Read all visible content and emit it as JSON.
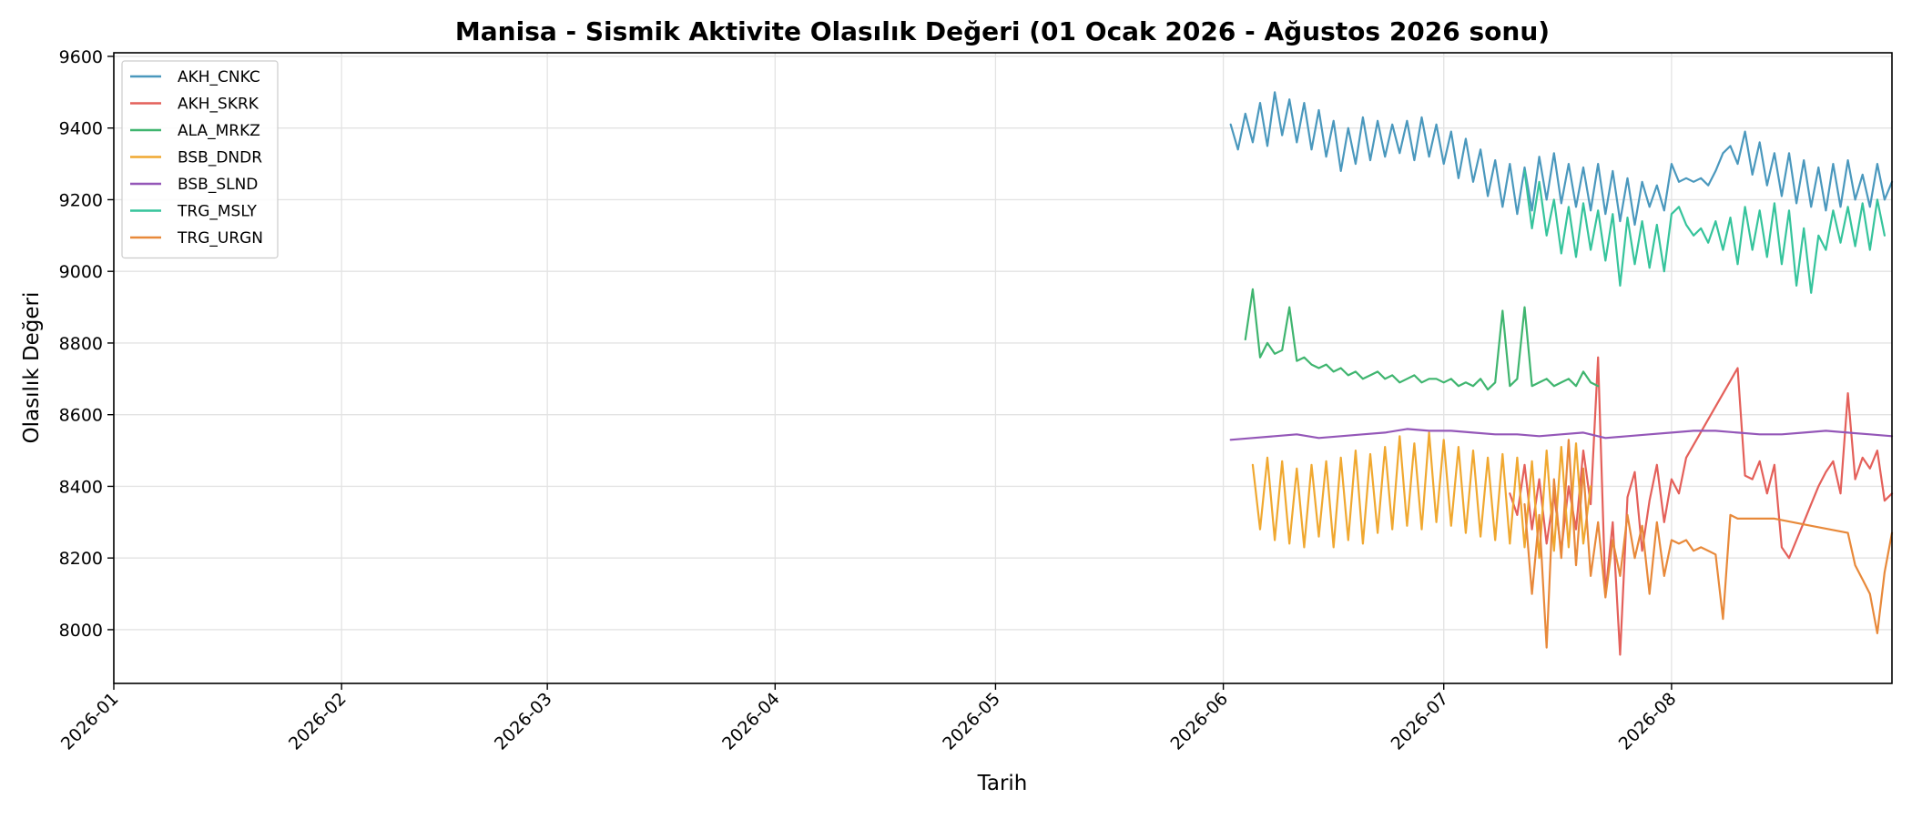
{
  "chart_data": {
    "type": "line",
    "title": "Manisa - Sismik Aktivite Olasılık Değeri (01 Ocak 2026 - Ağustos 2026 sonu)",
    "xlabel": "Tarih",
    "ylabel": "Olasılık Değeri",
    "xlim": [
      "2026-01-01",
      "2026-08-31"
    ],
    "ylim": [
      7850,
      9610
    ],
    "x_ticks": [
      "2026-01",
      "2026-02",
      "2026-03",
      "2026-04",
      "2026-05",
      "2026-06",
      "2026-07",
      "2026-08"
    ],
    "y_ticks": [
      8000,
      8200,
      8400,
      8600,
      8800,
      9000,
      9200,
      9400,
      9600
    ],
    "grid": true,
    "legend_position": "top-left",
    "series": [
      {
        "name": "AKH_CNKC",
        "color": "#4a98bd",
        "x": [
          "2026-06-02",
          "2026-06-03",
          "2026-06-04",
          "2026-06-05",
          "2026-06-06",
          "2026-06-07",
          "2026-06-08",
          "2026-06-09",
          "2026-06-10",
          "2026-06-11",
          "2026-06-12",
          "2026-06-13",
          "2026-06-14",
          "2026-06-15",
          "2026-06-16",
          "2026-06-17",
          "2026-06-18",
          "2026-06-19",
          "2026-06-20",
          "2026-06-21",
          "2026-06-22",
          "2026-06-23",
          "2026-06-24",
          "2026-06-25",
          "2026-06-26",
          "2026-06-27",
          "2026-06-28",
          "2026-06-29",
          "2026-06-30",
          "2026-07-01",
          "2026-07-02",
          "2026-07-03",
          "2026-07-04",
          "2026-07-05",
          "2026-07-06",
          "2026-07-07",
          "2026-07-08",
          "2026-07-09",
          "2026-07-10",
          "2026-07-11",
          "2026-07-12",
          "2026-07-13",
          "2026-07-14",
          "2026-07-15",
          "2026-07-16",
          "2026-07-17",
          "2026-07-18",
          "2026-07-19",
          "2026-07-20",
          "2026-07-21",
          "2026-07-22",
          "2026-07-23",
          "2026-07-24",
          "2026-07-25",
          "2026-07-26",
          "2026-07-27",
          "2026-07-28",
          "2026-07-29",
          "2026-07-30",
          "2026-07-31",
          "2026-08-01",
          "2026-08-02",
          "2026-08-03",
          "2026-08-04",
          "2026-08-05",
          "2026-08-06",
          "2026-08-07",
          "2026-08-08",
          "2026-08-09",
          "2026-08-10",
          "2026-08-11",
          "2026-08-12",
          "2026-08-13",
          "2026-08-14",
          "2026-08-15",
          "2026-08-16",
          "2026-08-17",
          "2026-08-18",
          "2026-08-19",
          "2026-08-20",
          "2026-08-21",
          "2026-08-22",
          "2026-08-23",
          "2026-08-24",
          "2026-08-25",
          "2026-08-26",
          "2026-08-27",
          "2026-08-28",
          "2026-08-29",
          "2026-08-30",
          "2026-08-31"
        ],
        "values": [
          9410,
          9340,
          9440,
          9360,
          9470,
          9350,
          9500,
          9380,
          9480,
          9360,
          9470,
          9340,
          9450,
          9320,
          9420,
          9280,
          9400,
          9300,
          9430,
          9310,
          9420,
          9320,
          9410,
          9330,
          9420,
          9310,
          9430,
          9320,
          9410,
          9300,
          9390,
          9260,
          9370,
          9250,
          9340,
          9210,
          9310,
          9180,
          9300,
          9160,
          9290,
          9170,
          9320,
          9200,
          9330,
          9190,
          9300,
          9180,
          9290,
          9170,
          9300,
          9160,
          9280,
          9140,
          9260,
          9130,
          9250,
          9180,
          9240,
          9170,
          9300,
          9250,
          9260,
          9250,
          9260,
          9240,
          9280,
          9330,
          9350,
          9300,
          9390,
          9270,
          9360,
          9240,
          9330,
          9210,
          9330,
          9190,
          9310,
          9180,
          9290,
          9170,
          9300,
          9180,
          9310,
          9200,
          9270,
          9180,
          9300,
          9200,
          9250
        ]
      },
      {
        "name": "AKH_SKRK",
        "color": "#e4605a",
        "x": [
          "2026-07-10",
          "2026-07-11",
          "2026-07-12",
          "2026-07-13",
          "2026-07-14",
          "2026-07-15",
          "2026-07-16",
          "2026-07-17",
          "2026-07-18",
          "2026-07-19",
          "2026-07-20",
          "2026-07-21",
          "2026-07-22",
          "2026-07-23",
          "2026-07-24",
          "2026-07-25",
          "2026-07-26",
          "2026-07-27",
          "2026-07-28",
          "2026-07-29",
          "2026-07-30",
          "2026-07-31",
          "2026-08-01",
          "2026-08-02",
          "2026-08-03",
          "2026-08-10",
          "2026-08-11",
          "2026-08-12",
          "2026-08-13",
          "2026-08-14",
          "2026-08-15",
          "2026-08-16",
          "2026-08-17",
          "2026-08-18",
          "2026-08-19",
          "2026-08-20",
          "2026-08-21",
          "2026-08-22",
          "2026-08-23",
          "2026-08-24",
          "2026-08-25",
          "2026-08-26",
          "2026-08-27",
          "2026-08-28",
          "2026-08-29",
          "2026-08-30",
          "2026-08-31"
        ],
        "values": [
          8380,
          8320,
          8460,
          8280,
          8420,
          8240,
          8380,
          8220,
          8400,
          8280,
          8500,
          8350,
          8760,
          8100,
          8300,
          7930,
          8370,
          8440,
          8220,
          8360,
          8460,
          8300,
          8420,
          8380,
          8480,
          8730,
          8430,
          8420,
          8470,
          8380,
          8460,
          8230,
          8200,
          8250,
          8300,
          8350,
          8400,
          8440,
          8470,
          8380,
          8660,
          8420,
          8480,
          8450,
          8500,
          8360,
          8380
        ]
      },
      {
        "name": "ALA_MRKZ",
        "color": "#3fb56f",
        "x": [
          "2026-06-04",
          "2026-06-05",
          "2026-06-06",
          "2026-06-07",
          "2026-06-08",
          "2026-06-09",
          "2026-06-10",
          "2026-06-11",
          "2026-06-12",
          "2026-06-13",
          "2026-06-14",
          "2026-06-15",
          "2026-06-16",
          "2026-06-17",
          "2026-06-18",
          "2026-06-19",
          "2026-06-20",
          "2026-06-21",
          "2026-06-22",
          "2026-06-23",
          "2026-06-24",
          "2026-06-25",
          "2026-06-26",
          "2026-06-27",
          "2026-06-28",
          "2026-06-29",
          "2026-06-30",
          "2026-07-01",
          "2026-07-02",
          "2026-07-03",
          "2026-07-04",
          "2026-07-05",
          "2026-07-06",
          "2026-07-07",
          "2026-07-08",
          "2026-07-09",
          "2026-07-10",
          "2026-07-11",
          "2026-07-12",
          "2026-07-13",
          "2026-07-14",
          "2026-07-15",
          "2026-07-16",
          "2026-07-17",
          "2026-07-18",
          "2026-07-19",
          "2026-07-20",
          "2026-07-21",
          "2026-07-22"
        ],
        "values": [
          8810,
          8950,
          8760,
          8800,
          8770,
          8780,
          8900,
          8750,
          8760,
          8740,
          8730,
          8740,
          8720,
          8730,
          8710,
          8720,
          8700,
          8710,
          8720,
          8700,
          8710,
          8690,
          8700,
          8710,
          8690,
          8700,
          8700,
          8690,
          8700,
          8680,
          8690,
          8680,
          8700,
          8670,
          8690,
          8890,
          8680,
          8700,
          8900,
          8680,
          8690,
          8700,
          8680,
          8690,
          8700,
          8680,
          8720,
          8690,
          8680
        ]
      },
      {
        "name": "BSB_DNDR",
        "color": "#f0a830",
        "x": [
          "2026-06-05",
          "2026-06-06",
          "2026-06-07",
          "2026-06-08",
          "2026-06-09",
          "2026-06-10",
          "2026-06-11",
          "2026-06-12",
          "2026-06-13",
          "2026-06-14",
          "2026-06-15",
          "2026-06-16",
          "2026-06-17",
          "2026-06-18",
          "2026-06-19",
          "2026-06-20",
          "2026-06-21",
          "2026-06-22",
          "2026-06-23",
          "2026-06-24",
          "2026-06-25",
          "2026-06-26",
          "2026-06-27",
          "2026-06-28",
          "2026-06-29",
          "2026-06-30",
          "2026-07-01",
          "2026-07-02",
          "2026-07-03",
          "2026-07-04",
          "2026-07-05",
          "2026-07-06",
          "2026-07-07",
          "2026-07-08",
          "2026-07-09",
          "2026-07-10",
          "2026-07-11",
          "2026-07-12",
          "2026-07-13",
          "2026-07-14",
          "2026-07-15",
          "2026-07-16",
          "2026-07-17",
          "2026-07-18",
          "2026-07-19",
          "2026-07-20",
          "2026-07-21"
        ],
        "values": [
          8460,
          8280,
          8480,
          8250,
          8470,
          8240,
          8450,
          8230,
          8460,
          8260,
          8470,
          8230,
          8480,
          8250,
          8500,
          8240,
          8490,
          8270,
          8510,
          8280,
          8540,
          8290,
          8520,
          8280,
          8550,
          8300,
          8530,
          8290,
          8510,
          8270,
          8500,
          8260,
          8480,
          8250,
          8490,
          8240,
          8480,
          8230,
          8470,
          8200,
          8500,
          8220,
          8510,
          8230,
          8520,
          8240,
          8400
        ]
      },
      {
        "name": "BSB_SLND",
        "color": "#9457b8",
        "x": [
          "2026-06-02",
          "2026-06-05",
          "2026-06-08",
          "2026-06-11",
          "2026-06-14",
          "2026-06-17",
          "2026-06-20",
          "2026-06-23",
          "2026-06-26",
          "2026-06-29",
          "2026-07-02",
          "2026-07-05",
          "2026-07-08",
          "2026-07-11",
          "2026-07-14",
          "2026-07-17",
          "2026-07-20",
          "2026-07-23",
          "2026-07-26",
          "2026-07-29",
          "2026-08-01",
          "2026-08-04",
          "2026-08-07",
          "2026-08-10",
          "2026-08-13",
          "2026-08-16",
          "2026-08-19",
          "2026-08-22",
          "2026-08-25",
          "2026-08-28",
          "2026-08-31"
        ],
        "values": [
          8530,
          8535,
          8540,
          8545,
          8535,
          8540,
          8545,
          8550,
          8560,
          8555,
          8555,
          8550,
          8545,
          8545,
          8540,
          8545,
          8550,
          8535,
          8540,
          8545,
          8550,
          8555,
          8555,
          8550,
          8545,
          8545,
          8550,
          8555,
          8550,
          8545,
          8540
        ]
      },
      {
        "name": "TRG_MSLY",
        "color": "#36c49c",
        "x": [
          "2026-07-12",
          "2026-07-13",
          "2026-07-14",
          "2026-07-15",
          "2026-07-16",
          "2026-07-17",
          "2026-07-18",
          "2026-07-19",
          "2026-07-20",
          "2026-07-21",
          "2026-07-22",
          "2026-07-23",
          "2026-07-24",
          "2026-07-25",
          "2026-07-26",
          "2026-07-27",
          "2026-07-28",
          "2026-07-29",
          "2026-07-30",
          "2026-07-31",
          "2026-08-01",
          "2026-08-02",
          "2026-08-03",
          "2026-08-04",
          "2026-08-05",
          "2026-08-06",
          "2026-08-07",
          "2026-08-08",
          "2026-08-09",
          "2026-08-10",
          "2026-08-11",
          "2026-08-12",
          "2026-08-13",
          "2026-08-14",
          "2026-08-15",
          "2026-08-16",
          "2026-08-17",
          "2026-08-18",
          "2026-08-19",
          "2026-08-20",
          "2026-08-21",
          "2026-08-22",
          "2026-08-23",
          "2026-08-24",
          "2026-08-25",
          "2026-08-26",
          "2026-08-27",
          "2026-08-28",
          "2026-08-29",
          "2026-08-30"
        ],
        "values": [
          9280,
          9120,
          9250,
          9100,
          9200,
          9050,
          9180,
          9040,
          9190,
          9060,
          9170,
          9030,
          9160,
          8960,
          9150,
          9020,
          9140,
          9010,
          9130,
          9000,
          9160,
          9180,
          9130,
          9100,
          9120,
          9080,
          9140,
          9060,
          9150,
          9020,
          9180,
          9060,
          9170,
          9040,
          9190,
          9020,
          9170,
          8960,
          9120,
          8940,
          9100,
          9060,
          9170,
          9080,
          9180,
          9070,
          9190,
          9060,
          9200,
          9100
        ]
      },
      {
        "name": "TRG_URGN",
        "color": "#e8893a",
        "x": [
          "2026-07-12",
          "2026-07-13",
          "2026-07-14",
          "2026-07-15",
          "2026-07-16",
          "2026-07-17",
          "2026-07-18",
          "2026-07-19",
          "2026-07-20",
          "2026-07-21",
          "2026-07-22",
          "2026-07-23",
          "2026-07-24",
          "2026-07-25",
          "2026-07-26",
          "2026-07-27",
          "2026-07-28",
          "2026-07-29",
          "2026-07-30",
          "2026-07-31",
          "2026-08-01",
          "2026-08-02",
          "2026-08-03",
          "2026-08-04",
          "2026-08-05",
          "2026-08-06",
          "2026-08-07",
          "2026-08-08",
          "2026-08-09",
          "2026-08-10",
          "2026-08-15",
          "2026-08-20",
          "2026-08-25",
          "2026-08-26",
          "2026-08-27",
          "2026-08-28",
          "2026-08-29",
          "2026-08-30",
          "2026-08-31"
        ],
        "values": [
          8350,
          8100,
          8320,
          7950,
          8420,
          8200,
          8530,
          8180,
          8450,
          8150,
          8300,
          8090,
          8250,
          8150,
          8320,
          8200,
          8290,
          8100,
          8300,
          8150,
          8250,
          8240,
          8250,
          8220,
          8230,
          8220,
          8210,
          8030,
          8320,
          8310,
          8310,
          8290,
          8270,
          8180,
          8140,
          8100,
          7990,
          8160,
          8270
        ]
      }
    ]
  }
}
